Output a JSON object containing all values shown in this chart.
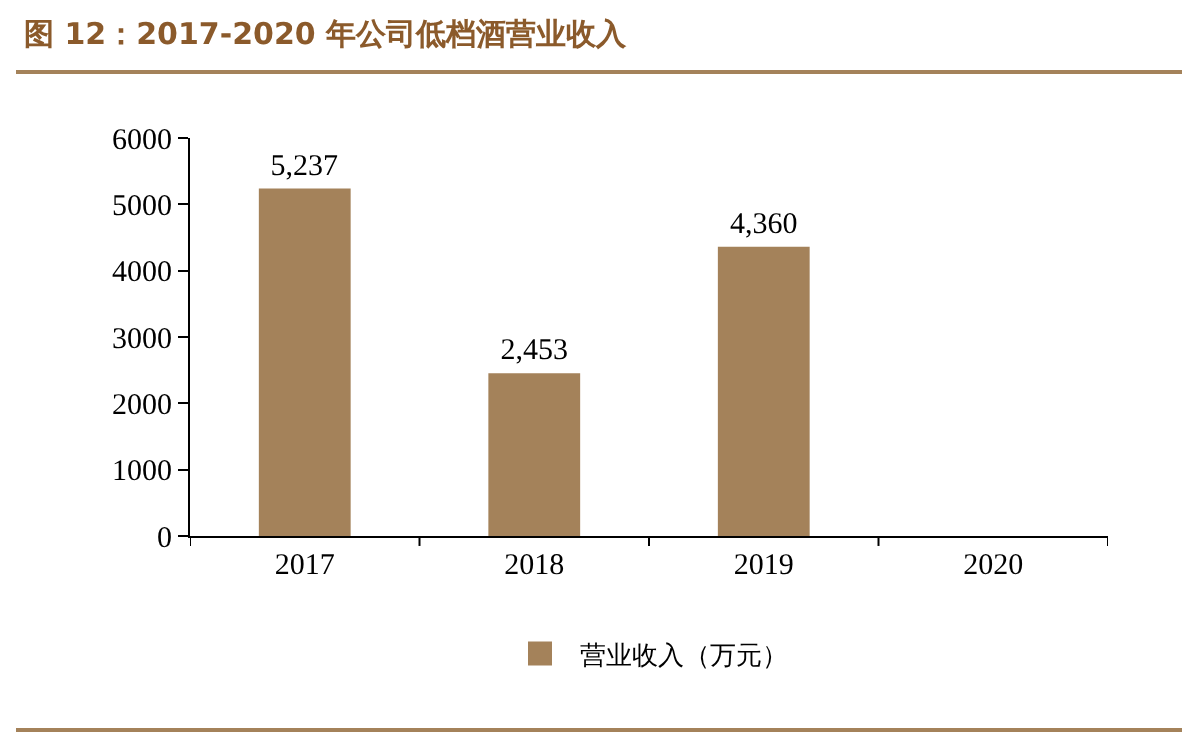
{
  "chart_data": {
    "type": "bar",
    "title": "图 12：2017-2020 年公司低档酒营业收入",
    "categories": [
      "2017",
      "2018",
      "2019",
      "2020"
    ],
    "series": [
      {
        "name": "营业收入（万元）",
        "color": "#a4825a",
        "values": [
          5237,
          2453,
          4360,
          null
        ],
        "value_labels": [
          "5,237",
          "2,453",
          "4,360",
          null
        ]
      }
    ],
    "ylim": [
      0,
      6000
    ],
    "yticks": [
      0,
      1000,
      2000,
      3000,
      4000,
      5000,
      6000
    ],
    "grid": false,
    "legend": "bottom"
  }
}
